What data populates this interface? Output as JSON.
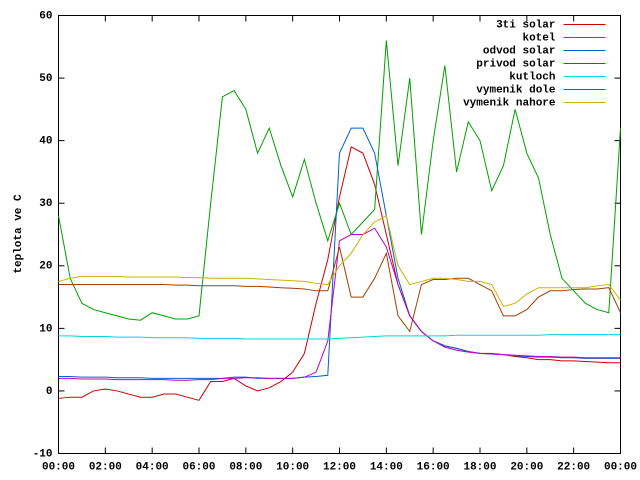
{
  "chart_data": {
    "type": "line",
    "ylabel": "teplota ve C",
    "x": [
      0,
      0.5,
      1,
      1.5,
      2,
      2.5,
      3,
      3.5,
      4,
      4.5,
      5,
      5.5,
      6,
      6.5,
      7,
      7.5,
      8,
      8.5,
      9,
      9.5,
      10,
      10.5,
      11,
      11.5,
      12,
      12.5,
      13,
      13.5,
      14,
      14.5,
      15,
      15.5,
      16,
      16.5,
      17,
      17.5,
      18,
      18.5,
      19,
      19.5,
      20,
      20.5,
      21,
      21.5,
      22,
      22.5,
      23,
      23.5,
      24
    ],
    "xlim": [
      0,
      24
    ],
    "xticks": [
      {
        "value": 0,
        "label": "00:00"
      },
      {
        "value": 2,
        "label": "02:00"
      },
      {
        "value": 4,
        "label": "04:00"
      },
      {
        "value": 6,
        "label": "06:00"
      },
      {
        "value": 8,
        "label": "08:00"
      },
      {
        "value": 10,
        "label": "10:00"
      },
      {
        "value": 12,
        "label": "12:00"
      },
      {
        "value": 14,
        "label": "14:00"
      },
      {
        "value": 16,
        "label": "16:00"
      },
      {
        "value": 18,
        "label": "18:00"
      },
      {
        "value": 20,
        "label": "20:00"
      },
      {
        "value": 22,
        "label": "22:00"
      },
      {
        "value": 24,
        "label": "00:00"
      }
    ],
    "ylim": [
      -10,
      60
    ],
    "yticks": [
      -10,
      0,
      10,
      20,
      30,
      40,
      50,
      60
    ],
    "legend": "top-right",
    "series": [
      {
        "name": "3ti solar",
        "color": "#d00000",
        "values": [
          -1.2,
          -1,
          -1,
          0,
          0.3,
          0,
          -0.5,
          -1,
          -1,
          -0.5,
          -0.5,
          -1,
          -1.5,
          1.5,
          1.5,
          2,
          0.8,
          0,
          0.5,
          1.5,
          3,
          6,
          14,
          21,
          31,
          39,
          38,
          33,
          25,
          17,
          12,
          9.5,
          8,
          7.2,
          6.8,
          6.3,
          6,
          6,
          5.8,
          5.5,
          5.3,
          5,
          5,
          4.8,
          4.8,
          4.7,
          4.6,
          4.5,
          4.5
        ]
      },
      {
        "name": "kotel",
        "color": "#00a000",
        "values": [
          28,
          18,
          14,
          13,
          12.5,
          12,
          11.5,
          11.3,
          12.5,
          12,
          11.5,
          11.5,
          12,
          30,
          47,
          48,
          45,
          38,
          42,
          36,
          31,
          37,
          30,
          24,
          30,
          25,
          27,
          29,
          56,
          36,
          50,
          25,
          40,
          52,
          35,
          43,
          40,
          32,
          36,
          45,
          38,
          34,
          25,
          18,
          16,
          14,
          13,
          12.5,
          42
        ]
      },
      {
        "name": "odvod solar",
        "color": "#0060d0",
        "values": [
          2.3,
          2.3,
          2.2,
          2.2,
          2.2,
          2.1,
          2.1,
          2.1,
          2,
          2,
          2,
          2,
          2,
          2,
          2,
          2.2,
          2.2,
          2,
          2,
          2,
          2,
          2.2,
          2.3,
          2.5,
          38,
          42,
          42,
          38,
          28,
          18,
          12,
          9.5,
          8,
          7.2,
          6.8,
          6.3,
          6,
          5.9,
          5.8,
          5.6,
          5.5,
          5.4,
          5.4,
          5.3,
          5.3,
          5.2,
          5.2,
          5.2,
          5.2
        ]
      },
      {
        "name": "privod solar",
        "color": "#c000c0",
        "values": [
          2,
          2,
          1.9,
          1.9,
          1.9,
          1.8,
          1.8,
          1.8,
          1.8,
          1.8,
          1.7,
          1.7,
          1.8,
          1.8,
          2,
          2,
          2.1,
          2.1,
          2,
          2,
          2,
          2.2,
          3,
          8,
          24,
          25,
          25,
          26,
          23,
          17,
          12,
          9.5,
          8,
          7,
          6.5,
          6.2,
          6,
          5.9,
          5.8,
          5.7,
          5.6,
          5.5,
          5.5,
          5.4,
          5.4,
          5.3,
          5.3,
          5.3,
          5.3
        ]
      },
      {
        "name": "kutloch",
        "color": "#00d8d8",
        "values": [
          8.8,
          8.8,
          8.7,
          8.7,
          8.7,
          8.6,
          8.6,
          8.6,
          8.5,
          8.5,
          8.5,
          8.5,
          8.4,
          8.4,
          8.4,
          8.4,
          8.3,
          8.3,
          8.3,
          8.3,
          8.3,
          8.3,
          8.3,
          8.3,
          8.4,
          8.5,
          8.6,
          8.7,
          8.8,
          8.8,
          8.8,
          8.8,
          8.8,
          8.8,
          8.9,
          8.9,
          8.9,
          8.9,
          8.9,
          8.9,
          8.9,
          8.9,
          9,
          9,
          9,
          9,
          9,
          9,
          9
        ]
      },
      {
        "name": "vymenik dole",
        "color": "#a04000",
        "values": [
          17,
          17,
          17,
          17,
          17,
          17,
          17,
          17,
          17,
          17,
          16.9,
          16.9,
          16.8,
          16.8,
          16.8,
          16.8,
          16.7,
          16.7,
          16.6,
          16.5,
          16.4,
          16.3,
          16,
          16,
          23,
          15,
          15,
          18,
          22,
          12,
          9.5,
          17,
          17.8,
          17.8,
          18,
          18,
          17,
          16,
          12,
          12,
          13,
          15,
          16,
          16,
          16.2,
          16.3,
          16.3,
          16.5,
          12.5
        ]
      },
      {
        "name": "vymenik nahore",
        "color": "#c8b400",
        "values": [
          17.5,
          18,
          18.3,
          18.3,
          18.3,
          18.3,
          18.2,
          18.2,
          18.2,
          18.2,
          18.2,
          18.1,
          18.1,
          18,
          18,
          18,
          18,
          17.9,
          17.8,
          17.7,
          17.6,
          17.5,
          17.2,
          17,
          20,
          22,
          25,
          27,
          28,
          20,
          17,
          17.5,
          18,
          18,
          17.8,
          17.5,
          17.5,
          17,
          13.5,
          14,
          15.5,
          16.5,
          16.5,
          16.5,
          16.5,
          16.5,
          16.8,
          17,
          14.5
        ]
      }
    ]
  }
}
